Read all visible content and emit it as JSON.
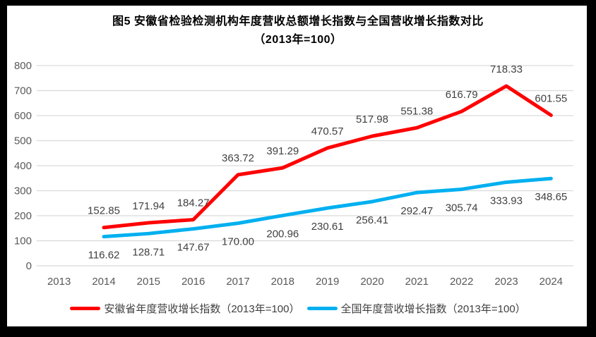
{
  "window": {
    "background": "#000000",
    "panel_background": "#FFFFFF"
  },
  "title": {
    "line1": "图5  安徽省检验检测机构年度营收总额增长指数与全国营收增长指数对比",
    "line2": "（2013年=100）"
  },
  "chart_data": {
    "type": "line",
    "title": "图5 安徽省检验检测机构年度营收总额增长指数与全国营收增长指数对比（2013年=100）",
    "categories": [
      "2013",
      "2014",
      "2015",
      "2016",
      "2017",
      "2018",
      "2019",
      "2020",
      "2021",
      "2022",
      "2023",
      "2024"
    ],
    "series": [
      {
        "name": "安徽省年度营收增长指数（2013年=100）",
        "color": "#FF0000",
        "start_index": 1,
        "label_position": "above",
        "values": [
          152.85,
          171.94,
          184.27,
          363.72,
          391.29,
          470.57,
          517.98,
          551.38,
          616.79,
          718.33,
          601.55
        ],
        "labels": [
          "152.85",
          "171.94",
          "184.27",
          "363.72",
          "391.29",
          "470.57",
          "517.98",
          "551.38",
          "616.79",
          "718.33",
          "601.55"
        ]
      },
      {
        "name": "全国年度营收增长指数（2013年=100）",
        "color": "#00B0F0",
        "start_index": 1,
        "label_position": "below",
        "values": [
          116.62,
          128.71,
          147.67,
          170.0,
          200.96,
          230.61,
          256.41,
          292.47,
          305.74,
          333.93,
          348.65
        ],
        "labels": [
          "116.62",
          "128.71",
          "147.67",
          "170.00",
          "200.96",
          "230.61",
          "256.41",
          "292.47",
          "305.74",
          "333.93",
          "348.65"
        ]
      }
    ],
    "y_axis": {
      "min": 0,
      "max": 800,
      "step": 100,
      "tick_labels": [
        "0",
        "100",
        "200",
        "300",
        "400",
        "500",
        "600",
        "700",
        "800"
      ]
    },
    "grid": true,
    "legend_position": "bottom",
    "colors": {
      "gridline": "#D9D9D9",
      "axis_text": "#595959",
      "data_label": "#404040"
    }
  }
}
